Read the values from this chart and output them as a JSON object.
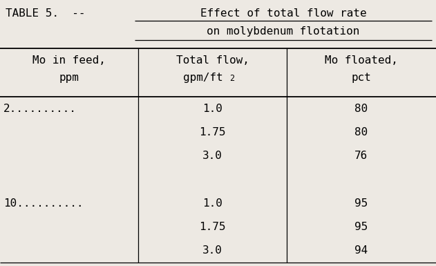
{
  "bg_color": "#ede9e3",
  "font_family": "monospace",
  "font_size": 11.5,
  "title_prefix": "TABLE 5.  --",
  "title_underlined_line1": "Effect of total flow rate",
  "title_underlined_line2": "on molybdenum flotation",
  "col1_header_line1": "Mo in feed,",
  "col1_header_line2": "ppm",
  "col2_header_line1": "Total flow,",
  "col2_header_line2": "gpm/ft",
  "col2_header_sup": "2",
  "col3_header_line1": "Mo floated,",
  "col3_header_line2": "pct",
  "col1_data": [
    "2..........",
    "",
    "",
    "",
    "10..........",
    "",
    ""
  ],
  "col2_data": [
    "1.0",
    "1.75",
    "3.0",
    "",
    "1.0",
    "1.75",
    "3.0"
  ],
  "col3_data": [
    "80",
    "80",
    "76",
    "",
    "95",
    "95",
    "94"
  ]
}
